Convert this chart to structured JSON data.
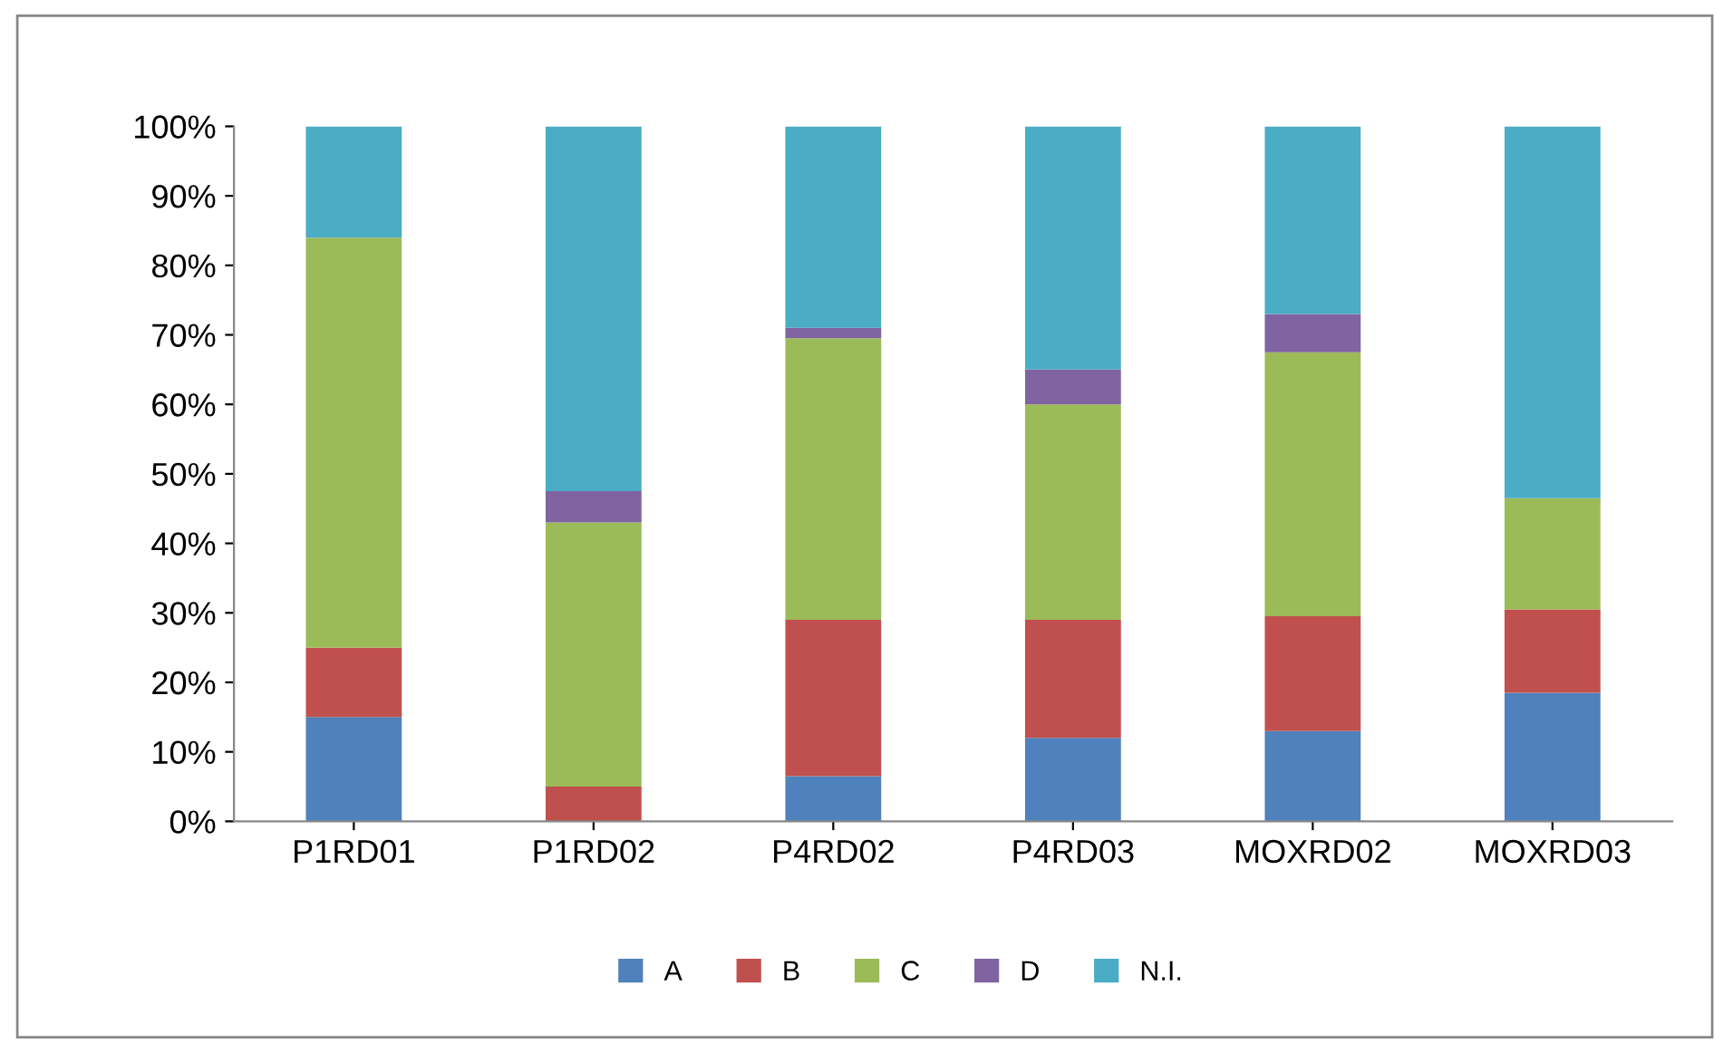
{
  "chart_data": {
    "type": "bar",
    "stacked": true,
    "categories": [
      "P1RD01",
      "P1RD02",
      "P4RD02",
      "P4RD03",
      "MOXRD02",
      "MOXRD03"
    ],
    "series": [
      {
        "name": "A",
        "color": "#4f81bd",
        "values": [
          15,
          0,
          6.5,
          12,
          13,
          18.5
        ]
      },
      {
        "name": "B",
        "color": "#c0504d",
        "values": [
          10,
          5,
          22.5,
          17,
          16.5,
          12
        ]
      },
      {
        "name": "C",
        "color": "#9bbb59",
        "values": [
          59,
          38,
          40.5,
          31,
          38,
          16
        ]
      },
      {
        "name": "D",
        "color": "#8064a2",
        "values": [
          0,
          4.5,
          1.5,
          5,
          5.5,
          0
        ]
      },
      {
        "name": "N.I.",
        "color": "#4bacc6",
        "values": [
          16,
          52.5,
          29,
          35,
          27,
          53.5
        ]
      }
    ],
    "ylim": [
      0,
      100
    ],
    "yticks": [
      {
        "value": 0,
        "label": "0%"
      },
      {
        "value": 10,
        "label": "10%"
      },
      {
        "value": 20,
        "label": "20%"
      },
      {
        "value": 30,
        "label": "30%"
      },
      {
        "value": 40,
        "label": "40%"
      },
      {
        "value": 50,
        "label": "50%"
      },
      {
        "value": 60,
        "label": "60%"
      },
      {
        "value": 70,
        "label": "70%"
      },
      {
        "value": 80,
        "label": "80%"
      },
      {
        "value": 90,
        "label": "90%"
      },
      {
        "value": 100,
        "label": "100%"
      }
    ],
    "grid": false,
    "legend": "bottom"
  }
}
